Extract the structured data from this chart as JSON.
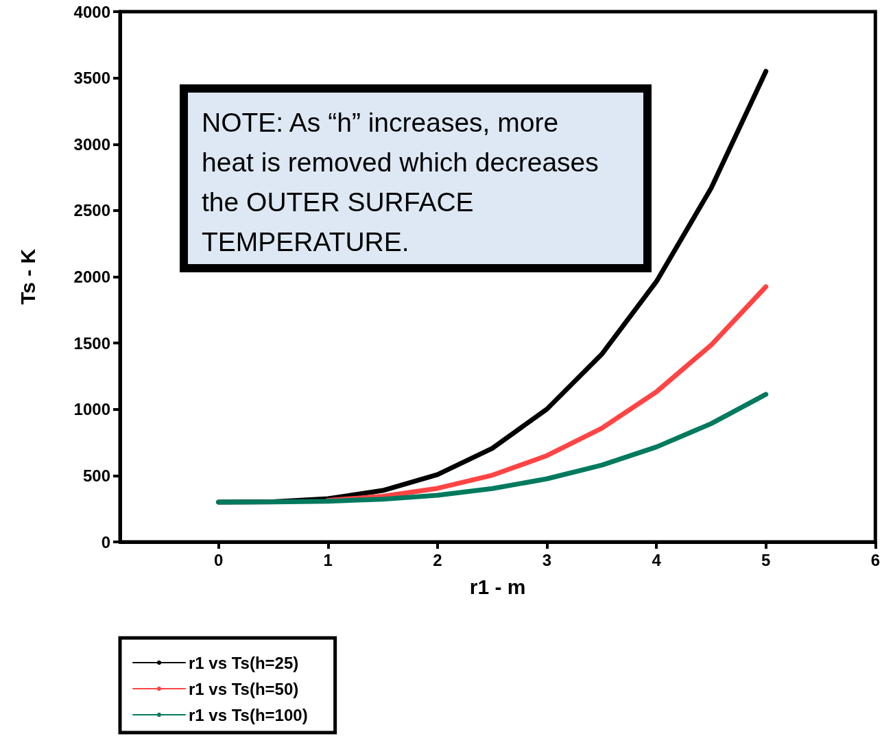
{
  "chart_data": {
    "type": "line",
    "xlabel": "r1 - m",
    "ylabel": "Ts - K",
    "x": [
      0,
      0.5,
      1,
      1.5,
      2,
      2.5,
      3,
      3.5,
      4,
      4.5,
      5
    ],
    "series": [
      {
        "name": "r1 vs Ts(h=25)",
        "color": "#000000",
        "values": [
          300,
          303,
          326,
          388,
          508,
          706,
          1002,
          1415,
          1964,
          2669,
          3550
        ]
      },
      {
        "name": "r1 vs Ts(h=50)",
        "color": "#ff4444",
        "values": [
          null,
          null,
          313,
          344,
          404,
          503,
          651,
          857,
          1132,
          1485,
          1925
        ]
      },
      {
        "name": "r1 vs Ts(h=100)",
        "color": "#007a5e",
        "values": [
          300,
          301,
          307,
          322,
          352,
          402,
          476,
          579,
          716,
          892,
          1113
        ]
      }
    ],
    "xlim": [
      -0.9,
      6
    ],
    "xticks": [
      0,
      1,
      2,
      3,
      4,
      5,
      6
    ],
    "ylim": [
      0,
      4000
    ],
    "yticks": [
      0,
      500,
      1000,
      1500,
      2000,
      2500,
      3000,
      3500,
      4000
    ],
    "grid": false,
    "legend": "bottom left",
    "marker": "none",
    "line_style": "solid",
    "annotations": [
      "NOTE: As “h” increases, more heat is removed which decreases the OUTER SURFACE TEMPERATURE."
    ]
  }
}
